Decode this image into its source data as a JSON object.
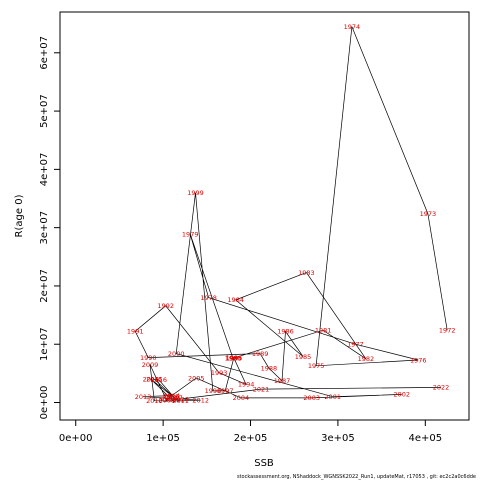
{
  "chart_data": {
    "type": "line",
    "title": "",
    "xlabel": "SSB",
    "ylabel": "R(age 0)",
    "xlim": [
      -18000,
      450000
    ],
    "ylim": [
      -3000000,
      67000000
    ],
    "x_ticks": [
      {
        "value": 0,
        "label": "0e+00"
      },
      {
        "value": 100000,
        "label": "1e+05"
      },
      {
        "value": 200000,
        "label": "2e+05"
      },
      {
        "value": 300000,
        "label": "3e+05"
      },
      {
        "value": 400000,
        "label": "4e+05"
      }
    ],
    "y_ticks": [
      {
        "value": 0,
        "label": "0e+00"
      },
      {
        "value": 10000000,
        "label": "1e+07"
      },
      {
        "value": 20000000,
        "label": "2e+07"
      },
      {
        "value": 30000000,
        "label": "3e+07"
      },
      {
        "value": 40000000,
        "label": "4e+07"
      },
      {
        "value": 50000000,
        "label": "5e+07"
      },
      {
        "value": 60000000,
        "label": "6e+07"
      }
    ],
    "grid": false,
    "points": [
      {
        "year": "1972",
        "ssb": 425000,
        "rec": 12400000
      },
      {
        "year": "1973",
        "ssb": 403000,
        "rec": 32400000
      },
      {
        "year": "1974",
        "ssb": 316000,
        "rec": 64500000
      },
      {
        "year": "1975",
        "ssb": 275000,
        "rec": 6300000
      },
      {
        "year": "1976",
        "ssb": 392000,
        "rec": 7300000
      },
      {
        "year": "1977",
        "ssb": 320000,
        "rec": 10000000
      },
      {
        "year": "1978",
        "ssb": 152000,
        "rec": 18000000
      },
      {
        "year": "1979",
        "ssb": 131000,
        "rec": 28900000
      },
      {
        "year": "1980",
        "ssb": 180000,
        "rec": 7600000
      },
      {
        "year": "1981",
        "ssb": 283000,
        "rec": 12400000
      },
      {
        "year": "1982",
        "ssb": 332000,
        "rec": 7500000
      },
      {
        "year": "1983",
        "ssb": 264000,
        "rec": 22300000
      },
      {
        "year": "1984",
        "ssb": 183000,
        "rec": 17600000
      },
      {
        "year": "1985",
        "ssb": 260000,
        "rec": 7900000
      },
      {
        "year": "1986",
        "ssb": 240000,
        "rec": 12200000
      },
      {
        "year": "1987",
        "ssb": 236000,
        "rec": 3700000
      },
      {
        "year": "1988",
        "ssb": 221000,
        "rec": 5900000
      },
      {
        "year": "1989",
        "ssb": 211000,
        "rec": 8400000
      },
      {
        "year": "1990",
        "ssb": 83000,
        "rec": 7700000
      },
      {
        "year": "1991",
        "ssb": 68000,
        "rec": 12200000
      },
      {
        "year": "1992",
        "ssb": 103000,
        "rec": 16600000
      },
      {
        "year": "1993",
        "ssb": 164000,
        "rec": 5100000
      },
      {
        "year": "1994",
        "ssb": 195000,
        "rec": 3100000
      },
      {
        "year": "1995",
        "ssb": 181000,
        "rec": 7600000
      },
      {
        "year": "1996",
        "ssb": 181000,
        "rec": 7700000
      },
      {
        "year": "1997",
        "ssb": 171000,
        "rec": 2000000
      },
      {
        "year": "1998",
        "ssb": 157000,
        "rec": 2000000
      },
      {
        "year": "1999",
        "ssb": 137000,
        "rec": 36000000
      },
      {
        "year": "2000",
        "ssb": 115000,
        "rec": 8400000
      },
      {
        "year": "2001",
        "ssb": 294000,
        "rec": 1000000
      },
      {
        "year": "2002",
        "ssb": 373000,
        "rec": 1400000
      },
      {
        "year": "2003",
        "ssb": 270000,
        "rec": 800000
      },
      {
        "year": "2004",
        "ssb": 189000,
        "rec": 800000
      },
      {
        "year": "2005",
        "ssb": 138000,
        "rec": 4200000
      },
      {
        "year": "2006",
        "ssb": 109000,
        "rec": 1100000
      },
      {
        "year": "2007",
        "ssb": 106000,
        "rec": 800000
      },
      {
        "year": "2008",
        "ssb": 104000,
        "rec": 400000
      },
      {
        "year": "2009",
        "ssb": 85000,
        "rec": 6500000
      },
      {
        "year": "2010",
        "ssb": 90000,
        "rec": 300000
      },
      {
        "year": "2011",
        "ssb": 120000,
        "rec": 300000
      },
      {
        "year": "2012",
        "ssb": 143000,
        "rec": 400000
      },
      {
        "year": "2013",
        "ssb": 77000,
        "rec": 1000000
      },
      {
        "year": "2014",
        "ssb": 110000,
        "rec": 1200000
      },
      {
        "year": "2015",
        "ssb": 90000,
        "rec": 4000000
      },
      {
        "year": "2016",
        "ssb": 95000,
        "rec": 3900000
      },
      {
        "year": "2017",
        "ssb": 113000,
        "rec": 800000
      },
      {
        "year": "2018",
        "ssb": 86000,
        "rec": 4000000
      },
      {
        "year": "2019",
        "ssb": 110000,
        "rec": 500000
      },
      {
        "year": "2020",
        "ssb": 120000,
        "rec": 600000
      },
      {
        "year": "2021",
        "ssb": 212000,
        "rec": 2300000
      },
      {
        "year": "2022",
        "ssb": 418000,
        "rec": 2600000
      }
    ]
  },
  "footer": {
    "credit": "stockassessment.org, NShaddock_WGNSSK2022_Run1, updateMat, r17053 , git: ec2c2a0c6dde"
  }
}
